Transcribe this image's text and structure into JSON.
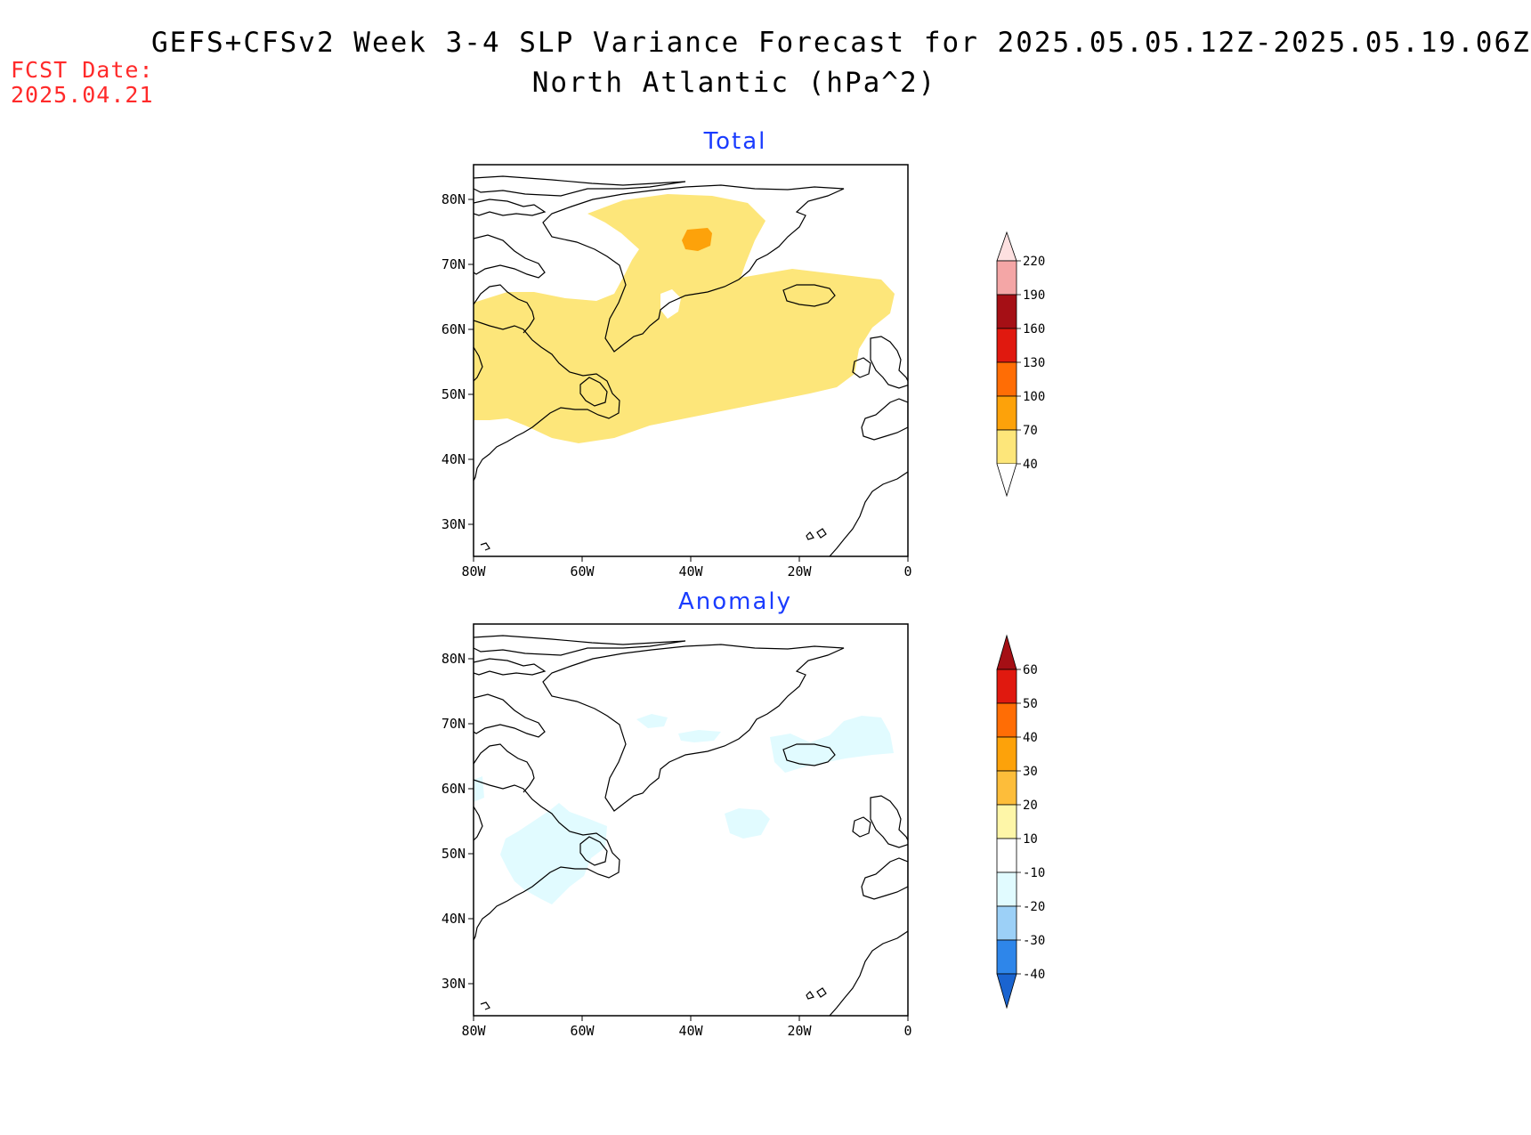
{
  "header": {
    "title_line1": "GEFS+CFSv2 Week 3-4 SLP Variance Forecast for 2025.05.05.12Z-2025.05.19.06Z",
    "title_line2": "North Atlantic (hPa^2)",
    "fcst_label": "FCST Date:",
    "fcst_date": "2025.04.21"
  },
  "lon_labels": [
    "80W",
    "60W",
    "40W",
    "20W",
    "0"
  ],
  "lat_labels": [
    "80N",
    "70N",
    "60N",
    "50N",
    "40N",
    "30N"
  ],
  "panels": [
    {
      "title": "Total",
      "colorbar": {
        "labels": [
          "220",
          "190",
          "160",
          "130",
          "100",
          "70",
          "40"
        ],
        "colors": [
          "#fde0e0",
          "#f4a6a6",
          "#a50f15",
          "#e0190f",
          "#ff6d05",
          "#fda20a",
          "#fde67a"
        ]
      }
    },
    {
      "title": "Anomaly",
      "colorbar": {
        "labels": [
          "60",
          "50",
          "40",
          "30",
          "20",
          "10",
          "-10",
          "-20",
          "-30",
          "-40"
        ],
        "colors": [
          "#a50f15",
          "#e0190f",
          "#ff6d05",
          "#fda20a",
          "#fdbd3a",
          "#fef6a8",
          "#ffffff",
          "#e1fbff",
          "#9cd0f7",
          "#2e86ea",
          "#1a64d0"
        ]
      }
    }
  ]
}
